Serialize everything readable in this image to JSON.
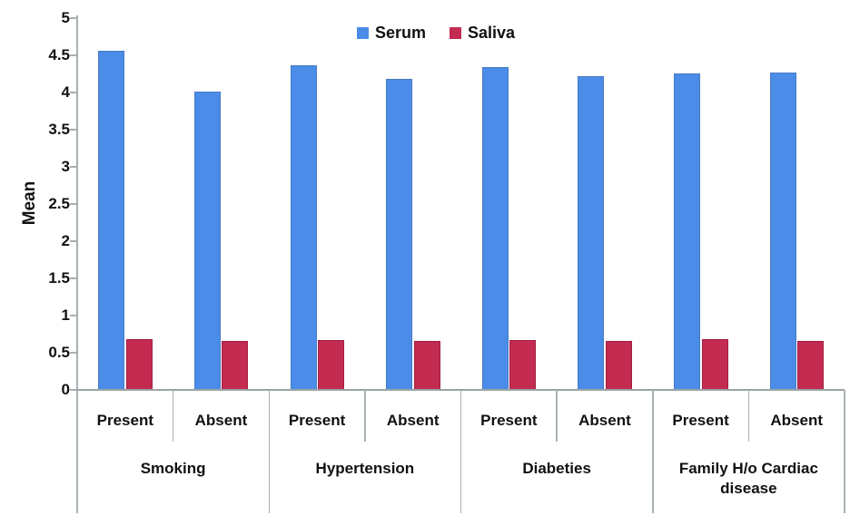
{
  "chart_data": {
    "type": "bar",
    "title": "",
    "ylabel": "Mean",
    "xlabel": "",
    "ylim": [
      0,
      5
    ],
    "ytick_labels": [
      "0",
      "0.5",
      "1",
      "1.5",
      "2",
      "2.5",
      "3",
      "3.5",
      "4",
      "4.5",
      "5"
    ],
    "grid": false,
    "legend_position": "top",
    "groups": [
      {
        "label": "Smoking",
        "subcategories": [
          "Present",
          "Absent"
        ]
      },
      {
        "label": "Hypertension",
        "subcategories": [
          "Present",
          "Absent"
        ]
      },
      {
        "label": "Diabeties",
        "subcategories": [
          "Present",
          "Absent"
        ]
      },
      {
        "label": "Family H/o Cardiac disease",
        "subcategories": [
          "Present",
          "Absent"
        ]
      }
    ],
    "series": [
      {
        "name": "Serum",
        "color": "#4a8ce8",
        "values": [
          4.56,
          4.01,
          4.37,
          4.18,
          4.34,
          4.22,
          4.26,
          4.27
        ]
      },
      {
        "name": "Saliva",
        "color": "#c32b51",
        "values": [
          0.68,
          0.66,
          0.67,
          0.66,
          0.67,
          0.66,
          0.68,
          0.66
        ]
      }
    ],
    "axis_color": "#a8b0b2",
    "text_color": "#111111"
  }
}
